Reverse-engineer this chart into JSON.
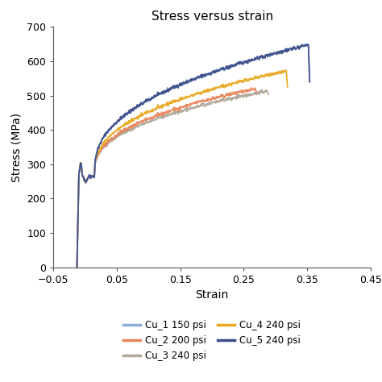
{
  "title": "Stress versus strain",
  "xlabel": "Strain",
  "ylabel": "Stress (MPa)",
  "xlim": [
    -0.05,
    0.45
  ],
  "ylim": [
    0,
    700
  ],
  "xticks": [
    -0.05,
    0.05,
    0.15,
    0.25,
    0.35,
    0.45
  ],
  "yticks": [
    0,
    100,
    200,
    300,
    400,
    500,
    600,
    700
  ],
  "curves": [
    {
      "label": "Cu_1 150 psi",
      "color": "#8dadd4",
      "end_strain": 0.352,
      "peak_stress": 648,
      "drop_to": 540,
      "zorder": 4
    },
    {
      "label": "Cu_2 200 psi",
      "color": "#e8855a",
      "end_strain": 0.268,
      "peak_stress": 520,
      "drop_to": 510,
      "zorder": 3
    },
    {
      "label": "Cu_3 240 psi",
      "color": "#b0a898",
      "end_strain": 0.287,
      "peak_stress": 513,
      "drop_to": 503,
      "zorder": 2
    },
    {
      "label": "Cu_4 240 psi",
      "color": "#e8a820",
      "end_strain": 0.317,
      "peak_stress": 572,
      "drop_to": 525,
      "zorder": 3
    },
    {
      "label": "Cu_5 240 psi",
      "color": "#3d4d8a",
      "end_strain": 0.352,
      "peak_stress": 648,
      "drop_to": 540,
      "zorder": 5
    }
  ],
  "figsize": [
    4.74,
    4.74
  ],
  "dpi": 100,
  "background_color": "#ffffff"
}
